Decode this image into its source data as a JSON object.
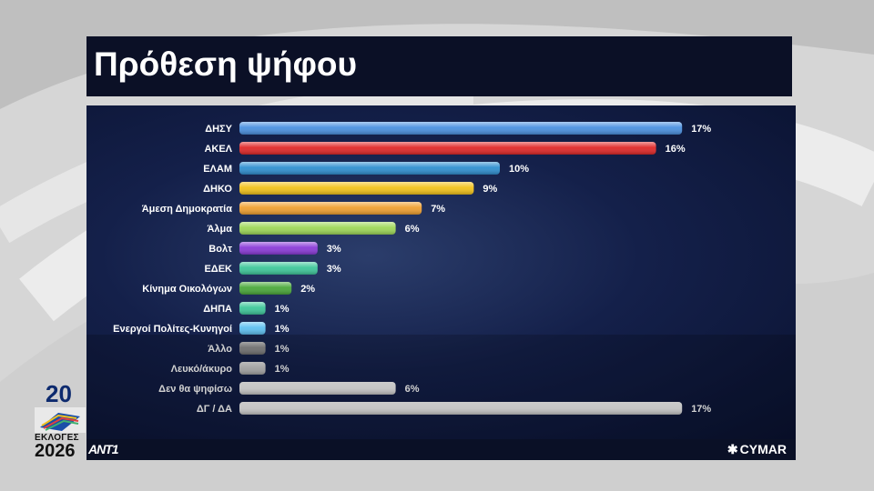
{
  "header": {
    "title": "Πρόθεση ψήφου"
  },
  "footer": {
    "channel_logo": "ANT1",
    "pollster": "CYMAR"
  },
  "badge": {
    "line1": "20",
    "line2": "ΕΚΛΟΓΕΣ",
    "line3": "2026"
  },
  "chart_data": {
    "type": "bar",
    "orientation": "horizontal",
    "title": "Πρόθεση ψήφου",
    "categories": [
      "ΔΗΣΥ",
      "ΑΚΕΛ",
      "ΕΛΑΜ",
      "ΔΗΚΟ",
      "Άμεση Δημοκρατία",
      "Άλμα",
      "Βολτ",
      "ΕΔΕΚ",
      "Κίνημα Οικολόγων",
      "ΔΗΠΑ",
      "Ενεργοί Πολίτες-Κυνηγοί",
      "Άλλο",
      "Λευκό/άκυρο",
      "Δεν θα ψηφίσω",
      "ΔΓ / ΔΑ"
    ],
    "values": [
      17,
      16,
      10,
      9,
      7,
      6,
      3,
      3,
      2,
      1,
      1,
      1,
      1,
      6,
      17
    ],
    "value_labels": [
      "17%",
      "16%",
      "10%",
      "9%",
      "7%",
      "6%",
      "3%",
      "3%",
      "2%",
      "1%",
      "1%",
      "1%",
      "1%",
      "6%",
      "17%"
    ],
    "colors": [
      "#4a90e0",
      "#e02828",
      "#2f8fd0",
      "#f2c21a",
      "#f0a030",
      "#9ed858",
      "#8a3ad8",
      "#3ec79a",
      "#4aa83a",
      "#3ec79a",
      "#5ec0f0",
      "#8c8c8c",
      "#c8c8c8",
      "#f2f2f2",
      "#f2f2f2"
    ],
    "legend": "none",
    "grid": false
  }
}
